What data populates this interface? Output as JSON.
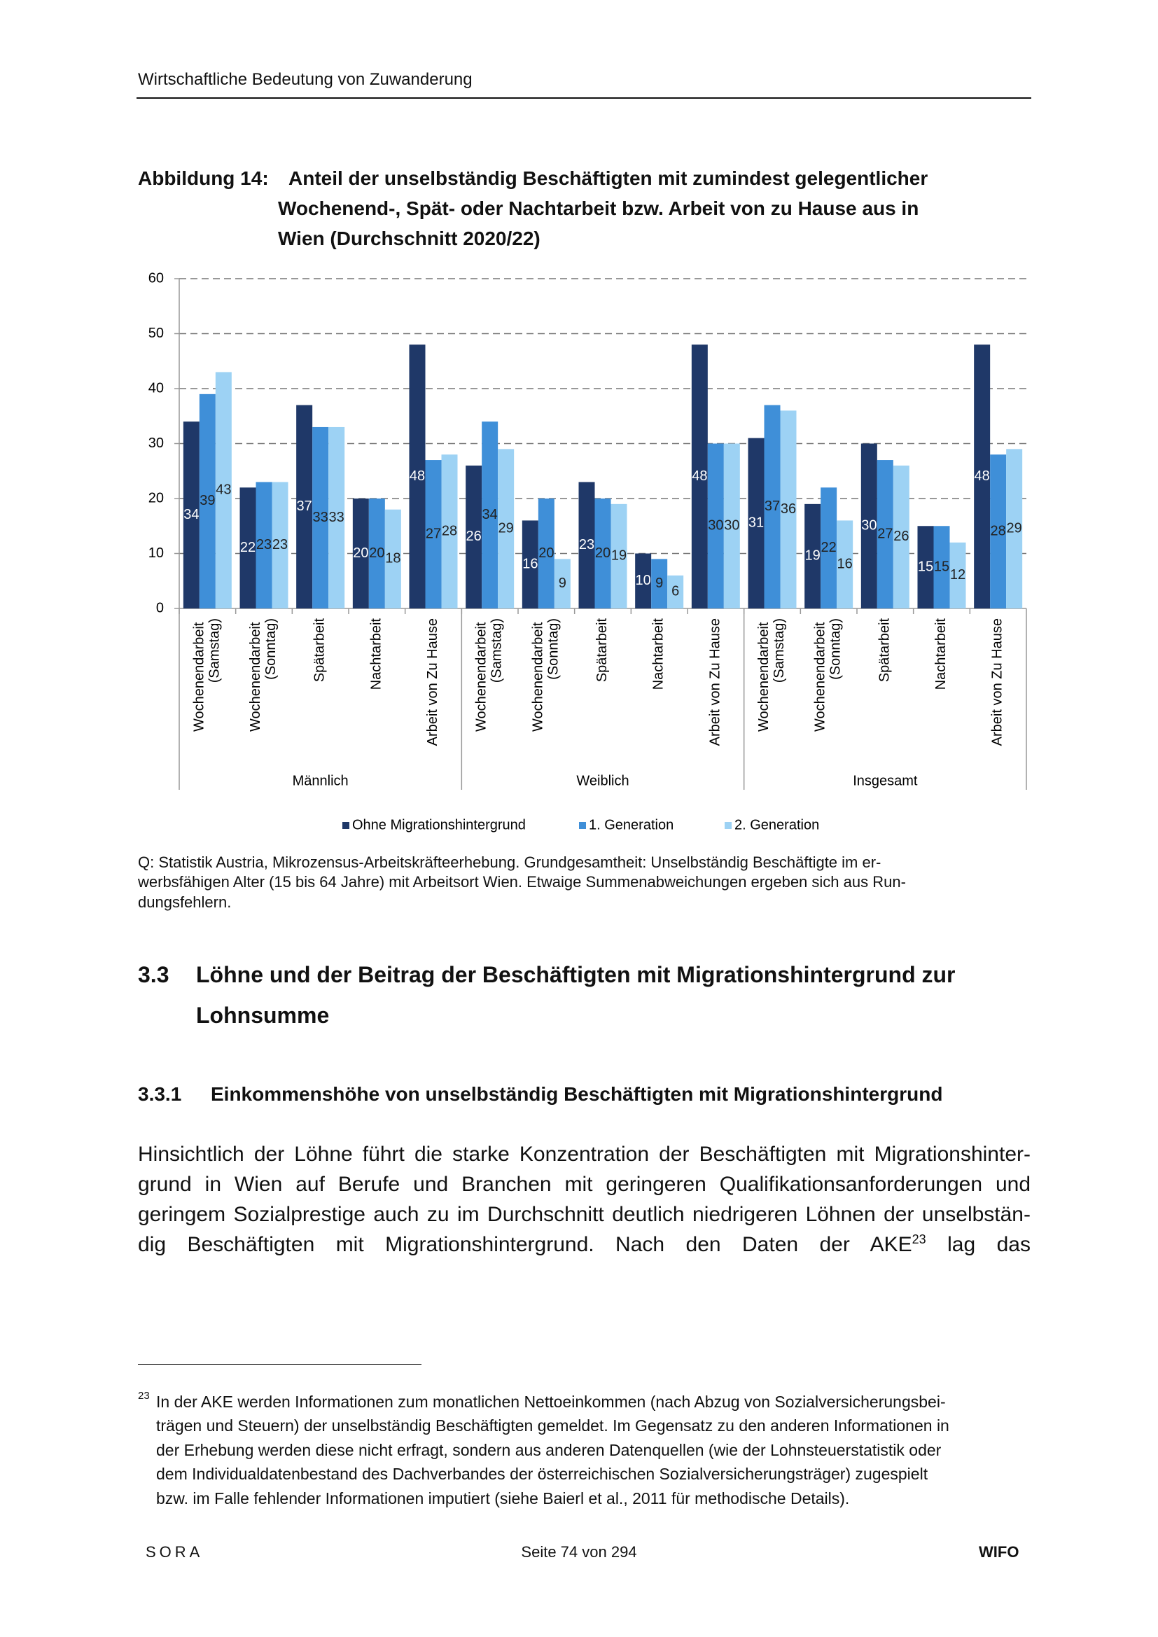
{
  "header": {
    "title": "Wirtschaftliche Bedeutung von Zuwanderung"
  },
  "figure": {
    "caption_label": "Abbildung 14:",
    "caption_lines": [
      "Anteil der unselbständig Beschäftigten mit zumindest gelegentlicher",
      "Wochenend-, Spät- oder Nachtarbeit bzw. Arbeit von zu Hause aus in",
      "Wien (Durchschnitt 2020/22)"
    ],
    "source_lines": [
      "Q: Statistik Austria, Mikrozensus-Arbeitskräfteerhebung. Grundgesamtheit: Unselbständig Beschäftigte im er-",
      "werbsfähigen Alter (15 bis 64 Jahre) mit Arbeitsort Wien. Etwaige Summenabweichungen ergeben sich aus Run-",
      "dungsfehlern."
    ]
  },
  "chart_data": {
    "type": "bar",
    "categories": [
      "Wochenendarbeit (Samstag)",
      "Wochenendarbeit (Sonntag)",
      "Spätarbeit",
      "Nachtarbeit",
      "Arbeit von Zu Hause",
      "Wochenendarbeit (Samstag)",
      "Wochenendarbeit (Sonntag)",
      "Spätarbeit",
      "Nachtarbeit",
      "Arbeit von Zu Hause",
      "Wochenendarbeit (Samstag)",
      "Wochenendarbeit (Sonntag)",
      "Spätarbeit",
      "Nachtarbeit",
      "Arbeit von Zu Hause"
    ],
    "groups": [
      "Männlich",
      "Weiblich",
      "Insgesamt"
    ],
    "series": [
      {
        "name": "Ohne Migrationshintergrund",
        "color": "#1f3868",
        "values": [
          34,
          22,
          37,
          20,
          48,
          26,
          16,
          23,
          10,
          48,
          31,
          19,
          30,
          15,
          48
        ]
      },
      {
        "name": "1. Generation",
        "color": "#3f8fd8",
        "values": [
          39,
          23,
          33,
          20,
          27,
          34,
          20,
          20,
          9,
          30,
          37,
          22,
          27,
          15,
          28
        ]
      },
      {
        "name": "2. Generation",
        "color": "#9dd2f4",
        "values": [
          43,
          23,
          33,
          18,
          28,
          29,
          9,
          19,
          6,
          30,
          36,
          16,
          26,
          12,
          29
        ]
      }
    ],
    "ylim": [
      0,
      60
    ],
    "yticks": [
      0,
      10,
      20,
      30,
      40,
      50,
      60
    ],
    "grid": true,
    "legend": "bottom"
  },
  "section": {
    "number": "3.3",
    "title_lines": [
      "Löhne und der Beitrag der Beschäftigten mit Migrationshintergrund zur",
      "Lohnsumme"
    ]
  },
  "subsection": {
    "number": "3.3.1",
    "title": "Einkommenshöhe von unselbständig Beschäftigten mit Migrationshintergrund"
  },
  "paragraph": {
    "lines": [
      "Hinsichtlich der Löhne führt die starke Konzentration der Beschäftigten mit Migrationshinter-",
      "grund in Wien auf Berufe und Branchen mit geringeren Qualifikationsanforderungen und",
      "geringem Sozialprestige auch zu im Durchschnitt deutlich niedrigeren Löhnen der unselbstän-"
    ],
    "last_line": {
      "before": "dig Beschäftigten mit Migrationshintergrund. Nach den Daten der AKE",
      "ref": "23",
      "after": "lag das"
    }
  },
  "footnote": {
    "number": "23",
    "lines": [
      "In der AKE werden Informationen zum monatlichen Nettoeinkommen (nach Abzug von Sozialversicherungsbei-",
      "trägen und Steuern) der unselbständig Beschäftigten gemeldet. Im Gegensatz zu den anderen Informationen in",
      "der Erhebung werden diese nicht erfragt, sondern aus anderen Datenquellen (wie der Lohnsteuerstatistik oder",
      "dem Individualdatenbestand des Dachverbandes der österreichischen Sozialversicherungsträger) zugespielt",
      "bzw. im Falle fehlender Informationen imputiert (siehe Baierl et al., 2011 für methodische Details)."
    ]
  },
  "footer": {
    "left": "SORA",
    "center": "Seite 74 von 294",
    "right": "WIFO"
  }
}
